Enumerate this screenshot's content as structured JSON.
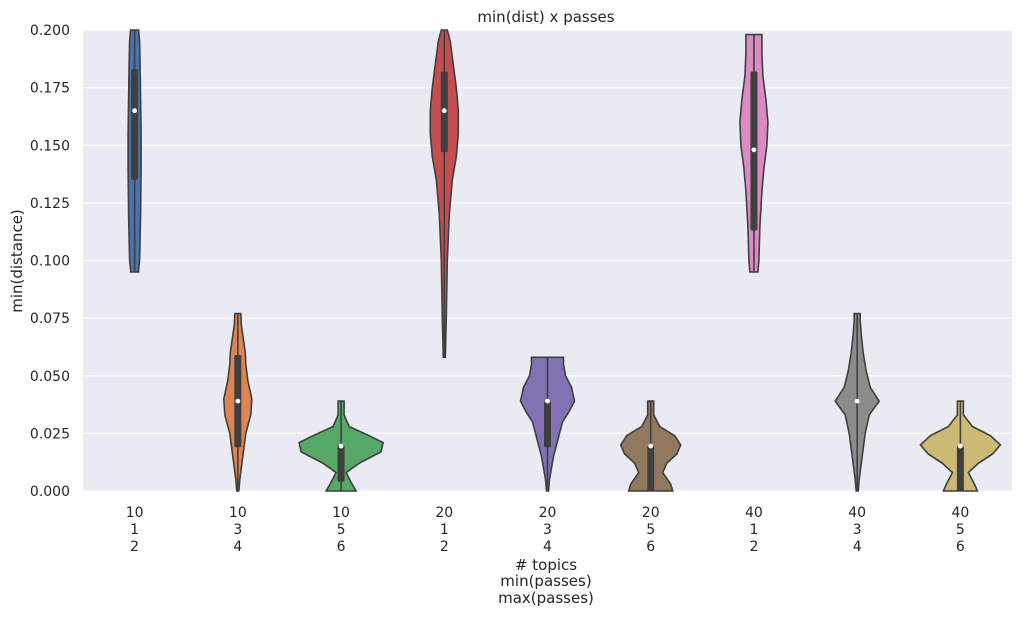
{
  "chart_data": {
    "type": "violin",
    "title": "min(dist) x passes",
    "ylabel": "min(distance)",
    "xlabel_lines": [
      "# topics",
      "min(passes)",
      "max(passes)"
    ],
    "ylim": [
      0,
      0.2
    ],
    "yticks": [
      0.0,
      0.025,
      0.05,
      0.075,
      0.1,
      0.125,
      0.15,
      0.175,
      0.2
    ],
    "ytick_labels": [
      "0.000",
      "0.025",
      "0.050",
      "0.075",
      "0.100",
      "0.125",
      "0.150",
      "0.175",
      "0.200"
    ],
    "grid": true,
    "background_color": "#eaeaf2",
    "categories": [
      {
        "topics": "10",
        "min_passes": "1",
        "max_passes": "2",
        "color": "#4c72b0",
        "profile": [
          [
            0.095,
            4
          ],
          [
            0.096,
            4
          ],
          [
            0.1,
            5
          ],
          [
            0.12,
            6
          ],
          [
            0.14,
            6.5
          ],
          [
            0.155,
            6.5
          ],
          [
            0.17,
            6
          ],
          [
            0.185,
            5.5
          ],
          [
            0.195,
            5
          ],
          [
            0.205,
            4
          ]
        ],
        "median": 0.165,
        "q1": 0.135,
        "q3": 0.183
      },
      {
        "topics": "10",
        "min_passes": "3",
        "max_passes": "4",
        "color": "#dd8452",
        "profile": [
          [
            0.0,
            1
          ],
          [
            0.005,
            2
          ],
          [
            0.015,
            5
          ],
          [
            0.025,
            8
          ],
          [
            0.033,
            13
          ],
          [
            0.04,
            14
          ],
          [
            0.048,
            10
          ],
          [
            0.055,
            8
          ],
          [
            0.06,
            7.5
          ],
          [
            0.066,
            5.5
          ],
          [
            0.072,
            3.5
          ],
          [
            0.077,
            3
          ]
        ],
        "median": 0.039,
        "q1": 0.019,
        "q3": 0.059
      },
      {
        "topics": "10",
        "min_passes": "5",
        "max_passes": "6",
        "color": "#55a868",
        "profile": [
          [
            0.0,
            15
          ],
          [
            0.003,
            11
          ],
          [
            0.008,
            5
          ],
          [
            0.012,
            18
          ],
          [
            0.017,
            40
          ],
          [
            0.021,
            42
          ],
          [
            0.024,
            28
          ],
          [
            0.028,
            8
          ],
          [
            0.033,
            3
          ],
          [
            0.039,
            3
          ]
        ],
        "median": 0.0195,
        "q1": 0.004,
        "q3": 0.02
      },
      {
        "topics": "20",
        "min_passes": "1",
        "max_passes": "2",
        "color": "#c44e52",
        "profile": [
          [
            0.058,
            1
          ],
          [
            0.075,
            2
          ],
          [
            0.1,
            3
          ],
          [
            0.12,
            5
          ],
          [
            0.135,
            8
          ],
          [
            0.145,
            12
          ],
          [
            0.155,
            14
          ],
          [
            0.165,
            14
          ],
          [
            0.175,
            12
          ],
          [
            0.185,
            9
          ],
          [
            0.195,
            6
          ],
          [
            0.2,
            3
          ]
        ],
        "median": 0.165,
        "q1": 0.147,
        "q3": 0.182
      },
      {
        "topics": "20",
        "min_passes": "3",
        "max_passes": "4",
        "color": "#8172b3",
        "profile": [
          [
            0.0,
            1
          ],
          [
            0.005,
            2
          ],
          [
            0.015,
            6
          ],
          [
            0.025,
            12
          ],
          [
            0.03,
            15
          ],
          [
            0.034,
            21
          ],
          [
            0.039,
            27
          ],
          [
            0.045,
            24
          ],
          [
            0.05,
            18
          ],
          [
            0.055,
            16
          ],
          [
            0.058,
            16
          ]
        ],
        "median": 0.039,
        "q1": 0.019,
        "q3": 0.039
      },
      {
        "topics": "20",
        "min_passes": "5",
        "max_passes": "6",
        "color": "#937860",
        "profile": [
          [
            0.0,
            22
          ],
          [
            0.003,
            20
          ],
          [
            0.008,
            12
          ],
          [
            0.012,
            16
          ],
          [
            0.016,
            26
          ],
          [
            0.02,
            30
          ],
          [
            0.024,
            24
          ],
          [
            0.028,
            9
          ],
          [
            0.033,
            3
          ],
          [
            0.039,
            3
          ]
        ],
        "median": 0.0195,
        "q1": 0.0,
        "q3": 0.0195
      },
      {
        "topics": "40",
        "min_passes": "1",
        "max_passes": "2",
        "color": "#da8bc3",
        "profile": [
          [
            0.095,
            4
          ],
          [
            0.1,
            5
          ],
          [
            0.115,
            6
          ],
          [
            0.13,
            8
          ],
          [
            0.14,
            10
          ],
          [
            0.15,
            13
          ],
          [
            0.16,
            14
          ],
          [
            0.17,
            12
          ],
          [
            0.18,
            9
          ],
          [
            0.19,
            8
          ],
          [
            0.198,
            8
          ]
        ],
        "median": 0.148,
        "q1": 0.113,
        "q3": 0.182
      },
      {
        "topics": "40",
        "min_passes": "3",
        "max_passes": "4",
        "color": "#8c8c8c",
        "profile": [
          [
            0.0,
            1
          ],
          [
            0.005,
            2
          ],
          [
            0.015,
            5
          ],
          [
            0.025,
            8
          ],
          [
            0.033,
            12
          ],
          [
            0.039,
            22
          ],
          [
            0.045,
            13
          ],
          [
            0.052,
            9
          ],
          [
            0.06,
            6
          ],
          [
            0.068,
            4
          ],
          [
            0.074,
            3
          ],
          [
            0.077,
            3
          ]
        ],
        "median": 0.039,
        "q1": 0.039,
        "q3": 0.039
      },
      {
        "topics": "40",
        "min_passes": "5",
        "max_passes": "6",
        "color": "#ccb974",
        "profile": [
          [
            0.0,
            17
          ],
          [
            0.003,
            14
          ],
          [
            0.008,
            8
          ],
          [
            0.012,
            18
          ],
          [
            0.016,
            32
          ],
          [
            0.02,
            40
          ],
          [
            0.024,
            30
          ],
          [
            0.028,
            12
          ],
          [
            0.033,
            3
          ],
          [
            0.039,
            3
          ]
        ],
        "median": 0.0195,
        "q1": 0.0,
        "q3": 0.0195
      }
    ]
  }
}
